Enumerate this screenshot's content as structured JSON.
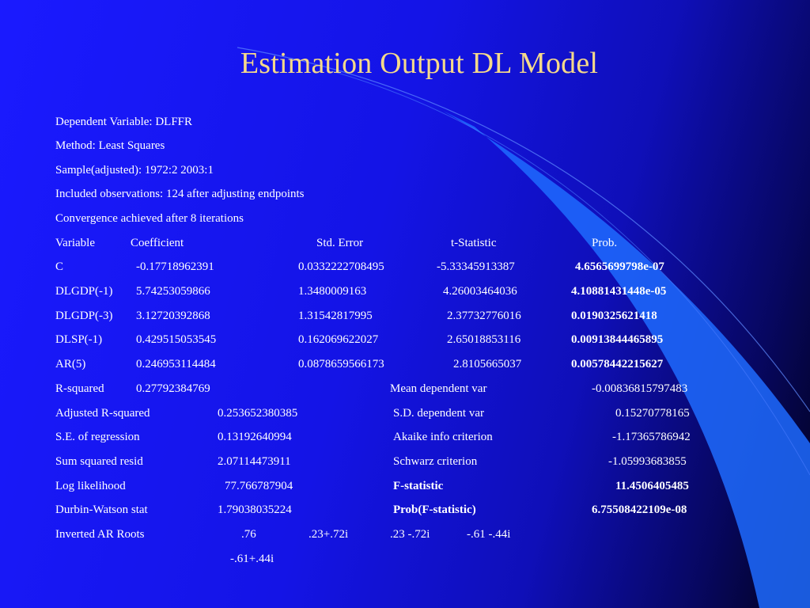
{
  "slide": {
    "title": "Estimation Output DL Model",
    "colors": {
      "title": "#f5d98a",
      "text": "#ffffff",
      "background": "#1a1aff",
      "accent_band": "#1f6bff"
    }
  },
  "header": {
    "dependent_variable": "Dependent Variable: DLFFR",
    "method": "Method: Least Squares",
    "sample": "Sample(adjusted): 1972:2 2003:1",
    "included": "Included observations: 124 after adjusting endpoints",
    "convergence": "Convergence achieved after 8 iterations"
  },
  "coef_table": {
    "columns": [
      "Variable",
      "Coefficient",
      "Std. Error",
      "t-Statistic",
      "Prob."
    ],
    "rows": [
      [
        "C",
        "-0.17718962391",
        "0.0332222708495",
        "-5.33345913387",
        "4.6565699798e-07"
      ],
      [
        "DLGDP(-1)",
        "5.74253059866",
        "1.3480009163",
        "4.26003464036",
        "4.10881431448e-05"
      ],
      [
        "DLGDP(-3)",
        "3.12720392868",
        "1.31542817995",
        "2.37732776016",
        "0.0190325621418"
      ],
      [
        "DLSP(-1)",
        "0.429515053545",
        "0.162069622027",
        "2.65018853116",
        "0.00913844465895"
      ],
      [
        "AR(5)",
        "0.246953114484",
        "0.0878659566173",
        "2.8105665037",
        "0.00578442215627"
      ]
    ]
  },
  "stats": [
    [
      "R-squared",
      "0.27792384769",
      "Mean dependent var",
      "-0.00836815797483"
    ],
    [
      "Adjusted R-squared",
      "0.253652380385",
      "S.D. dependent var",
      "0.15270778165"
    ],
    [
      "S.E. of regression",
      "0.13192640994",
      "Akaike info criterion",
      "-1.17365786942"
    ],
    [
      "Sum squared resid",
      "2.07114473911",
      "Schwarz criterion",
      "-1.05993683855"
    ],
    [
      "Log likelihood",
      "77.766787904",
      "F-statistic",
      "11.4506405485"
    ],
    [
      "Durbin-Watson stat",
      "1.79038035224",
      "Prob(F-statistic)",
      "6.75508422109e-08"
    ]
  ],
  "ar_roots": {
    "label": "Inverted AR Roots",
    "values": [
      ".76",
      ".23+.72i",
      ".23 -.72i",
      "-.61 -.44i",
      "-.61+.44i"
    ]
  }
}
